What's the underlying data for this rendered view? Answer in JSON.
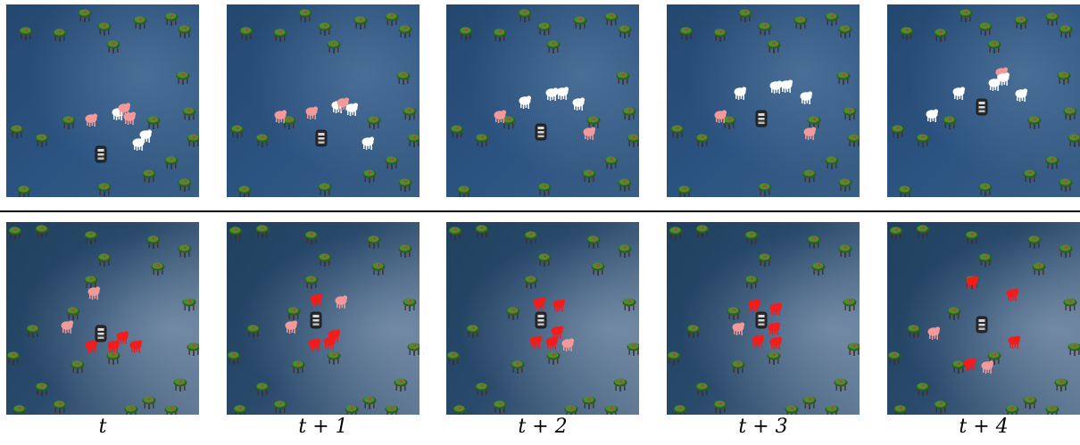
{
  "time_labels": [
    "t",
    "t + 1",
    "t + 2",
    "t + 3",
    "t + 4"
  ],
  "colors": {
    "foliage": "#4f8a2e",
    "foliage_dark": "#2f5c1c",
    "trunk": "#3b2f2a",
    "flower": "#b5403a",
    "creature_white": "#ffffff",
    "creature_pink": "#f29a9a",
    "creature_red": "#f21c1c",
    "agent": "#2b2b2b"
  }
}
